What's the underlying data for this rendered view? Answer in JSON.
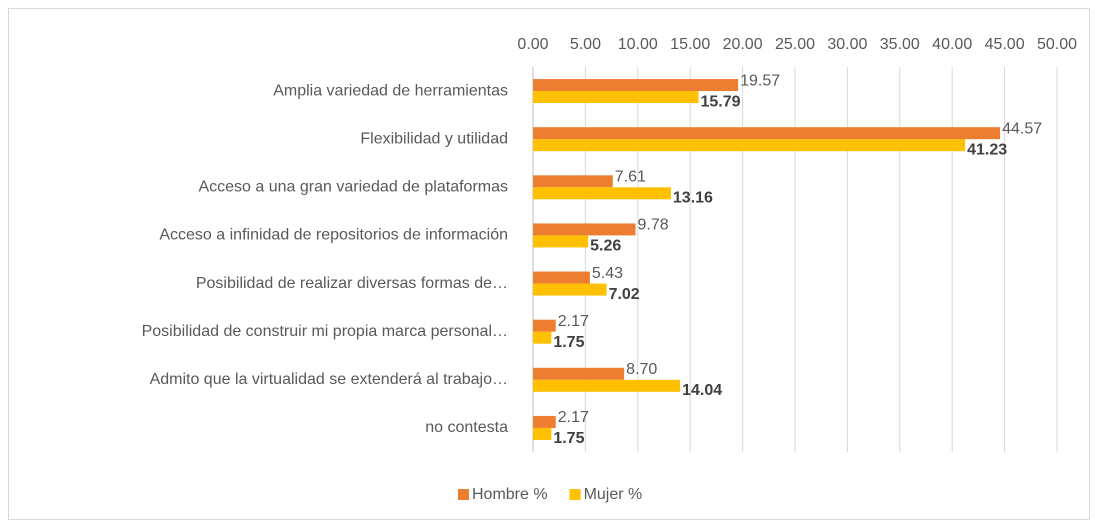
{
  "chart_data": {
    "type": "hbar",
    "categories": [
      "Amplia variedad de herramientas",
      "Flexibilidad y utilidad",
      "Acceso a una gran variedad de plataformas",
      "Acceso a infinidad de repositorios de información",
      "Posibilidad de realizar diversas formas de…",
      "Posibilidad de construir mi propia marca personal…",
      "Admito que la virtualidad se extenderá al trabajo…",
      "no contesta"
    ],
    "series": [
      {
        "name": "Hombre %",
        "color": "#ED7D31",
        "values": [
          19.57,
          44.57,
          7.61,
          9.78,
          5.43,
          2.17,
          8.7,
          2.17
        ],
        "value_labels": [
          "19.57",
          "44.57",
          "7.61",
          "9.78",
          "5.43",
          "2.17",
          "8.70",
          "2.17"
        ]
      },
      {
        "name": "Mujer %",
        "color": "#FFC000",
        "values": [
          15.79,
          41.23,
          13.16,
          5.26,
          7.02,
          1.75,
          14.04,
          1.75
        ],
        "value_labels": [
          "15.79",
          "41.23",
          "13.16",
          "5.26",
          "7.02",
          "1.75",
          "14.04",
          "1.75"
        ]
      }
    ],
    "xlim": [
      0,
      50
    ],
    "xticks": [
      {
        "value": 0,
        "label": "0.00"
      },
      {
        "value": 5,
        "label": "5.00"
      },
      {
        "value": 10,
        "label": "10.00"
      },
      {
        "value": 15,
        "label": "15.00"
      },
      {
        "value": 20,
        "label": "20.00"
      },
      {
        "value": 25,
        "label": "25.00"
      },
      {
        "value": 30,
        "label": "30.00"
      },
      {
        "value": 35,
        "label": "35.00"
      },
      {
        "value": 40,
        "label": "40.00"
      },
      {
        "value": 45,
        "label": "45.00"
      },
      {
        "value": 50,
        "label": "50.00"
      }
    ],
    "grid": true,
    "legend": "bottom"
  }
}
